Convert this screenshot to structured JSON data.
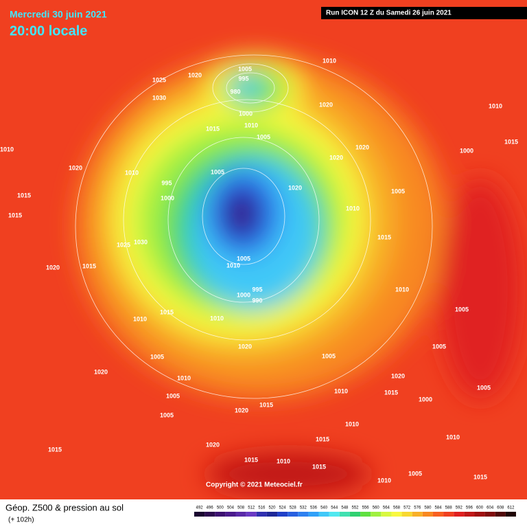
{
  "header": {
    "date": "Mercredi 30 juin 2021",
    "time": "20:00 locale",
    "run": "Run ICON 12 Z du Samedi 26 juin 2021"
  },
  "footer": {
    "title": "Géop. Z500 & pression au sol",
    "lead": "(+ 102h)",
    "copyright": "Copyright © 2021 Meteociel.fr"
  },
  "legend": {
    "values": [
      492,
      496,
      500,
      504,
      508,
      512,
      516,
      520,
      524,
      528,
      532,
      536,
      540,
      544,
      548,
      552,
      556,
      560,
      564,
      568,
      572,
      576,
      580,
      584,
      588,
      592,
      596,
      600,
      604,
      608,
      612
    ],
    "colors": [
      "#1a0530",
      "#2c0a4e",
      "#3c1070",
      "#4a1a8c",
      "#5a2aa8",
      "#6a3ac4",
      "#3030b0",
      "#1e2898",
      "#2040c8",
      "#2860e0",
      "#2e80f0",
      "#30a0f8",
      "#40c8f8",
      "#50e8f0",
      "#40e0b0",
      "#30d070",
      "#60e040",
      "#a0f040",
      "#d8f840",
      "#f8f840",
      "#f8d830",
      "#f8b028",
      "#f88820",
      "#f86020",
      "#f04020",
      "#e02020",
      "#c01818",
      "#a01010",
      "#800c0c",
      "#500808",
      "#200404"
    ]
  },
  "pressure_labels": [
    1005,
    995,
    980,
    1000,
    1010,
    1020,
    1025,
    1030,
    1015,
    1005,
    1020,
    1010,
    1020,
    1020,
    1000,
    1010,
    1015,
    995,
    1000,
    1010,
    1005,
    1020,
    1005,
    1010,
    1015,
    1005,
    1010,
    995,
    1000,
    990,
    1010,
    1015,
    1010,
    1020,
    1005,
    1005,
    1010,
    1005,
    1005,
    1020,
    1020,
    1015,
    1010,
    1020,
    1015,
    1015,
    1010,
    1015,
    1010,
    1005,
    1015,
    1020,
    1015,
    1025,
    1030,
    1015,
    1020,
    1015,
    1010,
    1010,
    1005,
    1000,
    1010,
    1005,
    1015,
    1020,
    1015,
    1010,
    1005
  ]
}
